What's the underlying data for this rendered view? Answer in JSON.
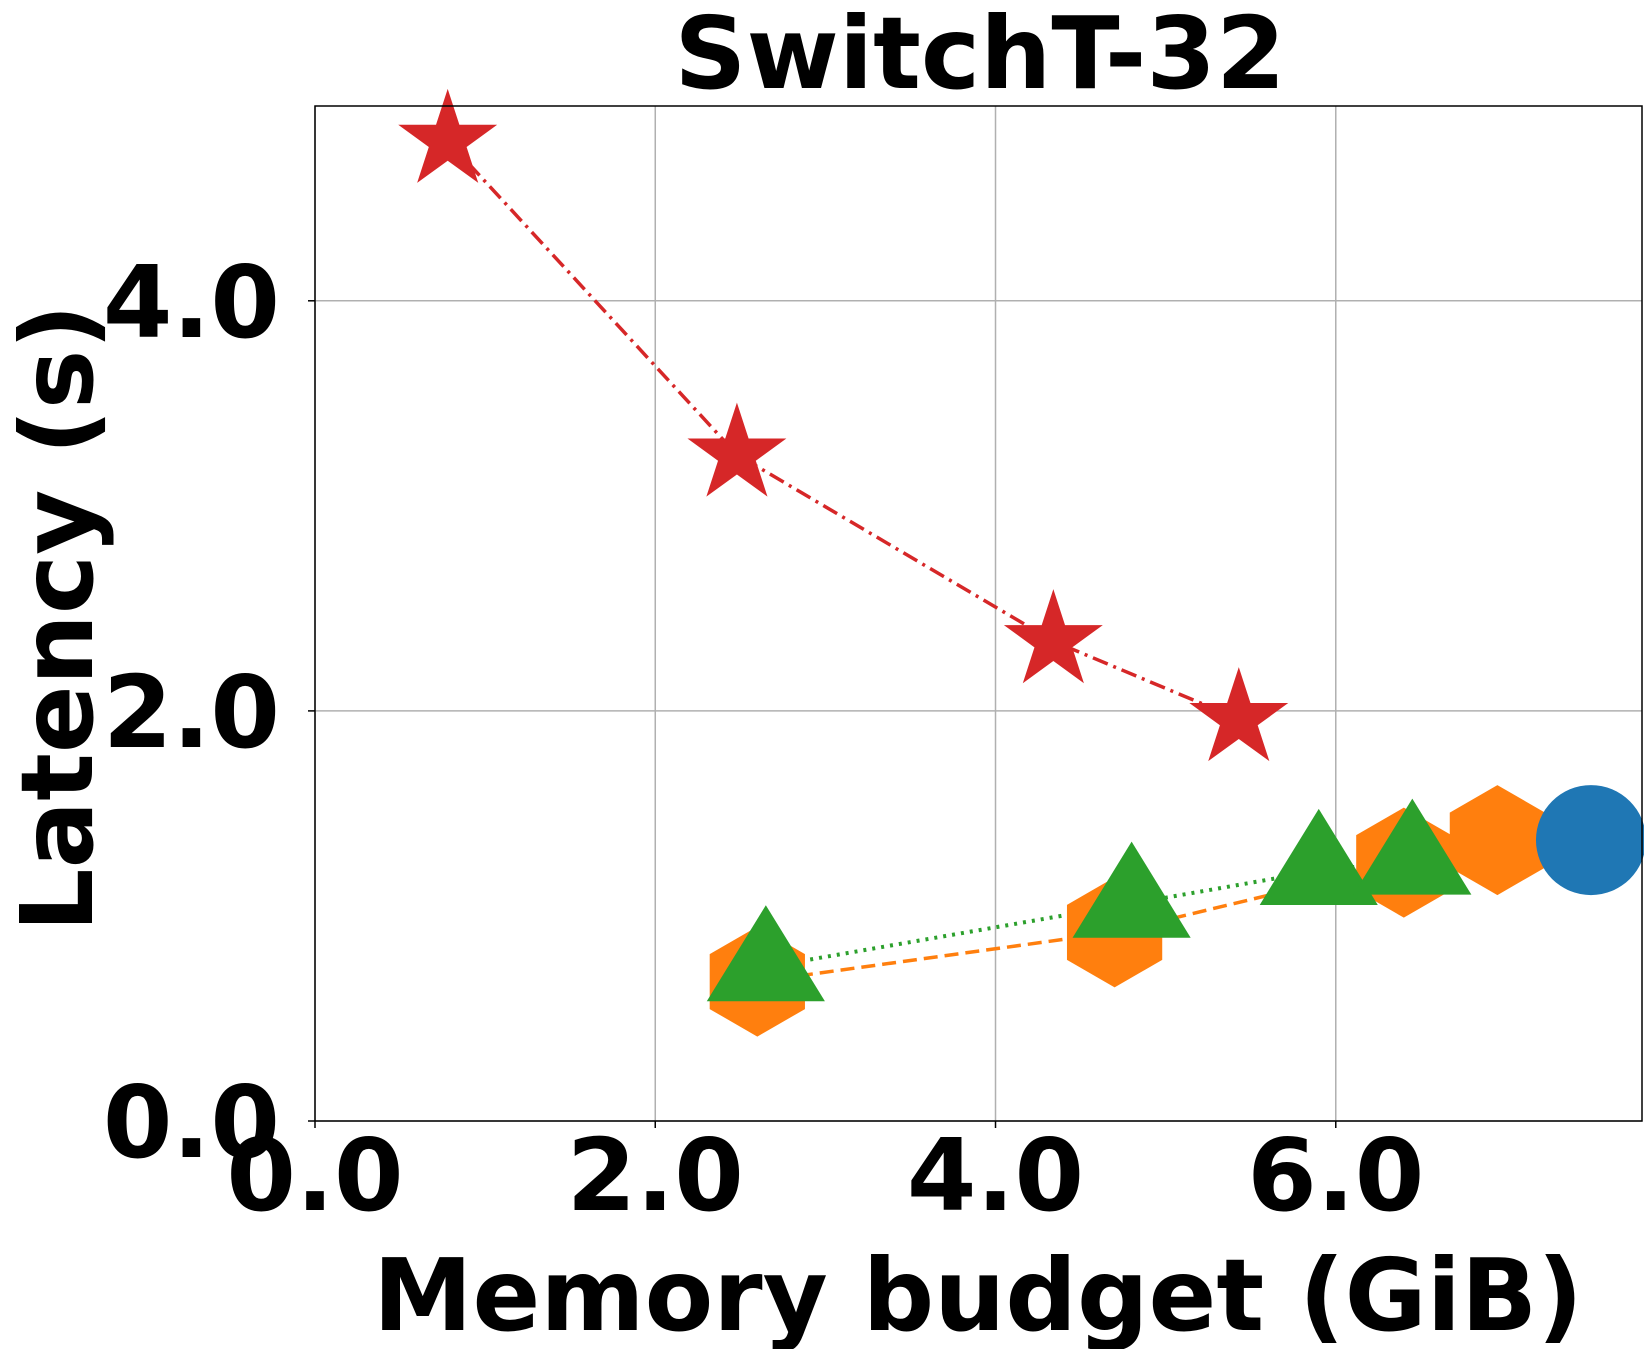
{
  "chart_data": {
    "type": "scatter",
    "title": "SwitchT-32",
    "xlabel": "Memory budget (GiB)",
    "ylabel": "Latency (s)",
    "xlim": [
      0.0,
      7.8
    ],
    "ylim": [
      0.0,
      4.95
    ],
    "xticks": [
      {
        "value": 0.0,
        "label": "0.0"
      },
      {
        "value": 2.0,
        "label": "2.0"
      },
      {
        "value": 4.0,
        "label": "4.0"
      },
      {
        "value": 6.0,
        "label": "6.0"
      }
    ],
    "yticks": [
      {
        "value": 0.0,
        "label": "0.0"
      },
      {
        "value": 2.0,
        "label": "2.0"
      },
      {
        "value": 4.0,
        "label": "4.0"
      }
    ],
    "grid": true,
    "series": [
      {
        "color": "#d62728",
        "marker": "star",
        "line_style": "dashdot",
        "points": [
          {
            "x": 0.78,
            "y": 4.78
          },
          {
            "x": 2.48,
            "y": 3.25
          },
          {
            "x": 4.34,
            "y": 2.34
          },
          {
            "x": 5.43,
            "y": 1.96
          }
        ]
      },
      {
        "color": "#ff7f0e",
        "marker": "hexagon",
        "line_style": "dashed",
        "points": [
          {
            "x": 2.6,
            "y": 0.68
          },
          {
            "x": 4.7,
            "y": 0.92
          },
          {
            "x": 6.4,
            "y": 1.26
          }
        ]
      },
      {
        "color": "#2ca02c",
        "marker": "triangle",
        "line_style": "dotted",
        "points": [
          {
            "x": 2.65,
            "y": 0.75
          },
          {
            "x": 4.8,
            "y": 1.06
          },
          {
            "x": 5.9,
            "y": 1.22
          },
          {
            "x": 6.45,
            "y": 1.27
          }
        ]
      },
      {
        "color": "#ff7f0e",
        "marker": "hexagon",
        "line_style": "none",
        "points": [
          {
            "x": 6.95,
            "y": 1.37
          }
        ]
      },
      {
        "color": "#1f77b4",
        "marker": "circle",
        "line_style": "none",
        "points": [
          {
            "x": 7.5,
            "y": 1.37
          }
        ]
      }
    ]
  }
}
